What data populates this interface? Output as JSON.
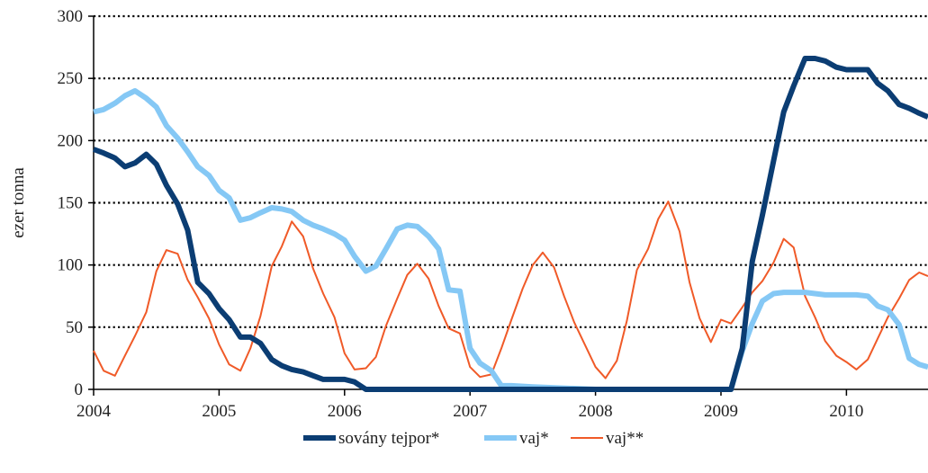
{
  "chart_data": {
    "type": "line",
    "title": "",
    "xlabel": "",
    "ylabel": "ezer tonna",
    "ylim": [
      0,
      300
    ],
    "xlim": [
      2004,
      2010.65
    ],
    "yticks": [
      0,
      50,
      100,
      150,
      200,
      250,
      300
    ],
    "xticks": [
      2004,
      2005,
      2006,
      2007,
      2008,
      2009,
      2010
    ],
    "grid": "horizontal-dotted",
    "legend_position": "bottom-center",
    "series": [
      {
        "name": "sovány tejpor*",
        "color": "#0b3d73",
        "width": "thick",
        "x": [
          2004.0,
          2004.08,
          2004.17,
          2004.25,
          2004.33,
          2004.42,
          2004.5,
          2004.58,
          2004.67,
          2004.75,
          2004.83,
          2004.92,
          2005.0,
          2005.08,
          2005.17,
          2005.25,
          2005.33,
          2005.42,
          2005.5,
          2005.58,
          2005.67,
          2005.75,
          2005.83,
          2005.92,
          2006.0,
          2006.08,
          2006.17,
          2006.25,
          2006.33,
          2006.5,
          2007.0,
          2007.5,
          2008.0,
          2008.5,
          2009.0,
          2009.08,
          2009.17,
          2009.25,
          2009.33,
          2009.42,
          2009.5,
          2009.58,
          2009.67,
          2009.75,
          2009.83,
          2009.92,
          2010.0,
          2010.08,
          2010.17,
          2010.25,
          2010.33,
          2010.42,
          2010.5,
          2010.58,
          2010.65
        ],
        "y": [
          193,
          190,
          186,
          179,
          182,
          189,
          181,
          164,
          149,
          128,
          86,
          77,
          65,
          56,
          42,
          42,
          37,
          24,
          19,
          16,
          14,
          11,
          8,
          8,
          8,
          6,
          0,
          0,
          0,
          0,
          0,
          0,
          0,
          0,
          0,
          0,
          33,
          103,
          140,
          184,
          223,
          244,
          266,
          266,
          264,
          259,
          257,
          257,
          257,
          246,
          240,
          229,
          226,
          222,
          219
        ]
      },
      {
        "name": "vaj*",
        "color": "#85c8f5",
        "width": "thick",
        "x": [
          2004.0,
          2004.08,
          2004.17,
          2004.25,
          2004.33,
          2004.42,
          2004.5,
          2004.58,
          2004.67,
          2004.75,
          2004.83,
          2004.92,
          2005.0,
          2005.08,
          2005.17,
          2005.25,
          2005.33,
          2005.42,
          2005.5,
          2005.58,
          2005.67,
          2005.75,
          2005.83,
          2005.92,
          2006.0,
          2006.08,
          2006.17,
          2006.25,
          2006.33,
          2006.42,
          2006.5,
          2006.58,
          2006.67,
          2006.75,
          2006.83,
          2006.92,
          2007.0,
          2007.08,
          2007.17,
          2007.25,
          2007.33,
          2007.5,
          2008.0,
          2008.5,
          2009.0,
          2009.08,
          2009.17,
          2009.25,
          2009.33,
          2009.42,
          2009.5,
          2009.58,
          2009.67,
          2009.75,
          2009.83,
          2009.92,
          2010.0,
          2010.08,
          2010.17,
          2010.25,
          2010.33,
          2010.42,
          2010.5,
          2010.58,
          2010.65
        ],
        "y": [
          223,
          225,
          230,
          236,
          240,
          234,
          227,
          212,
          202,
          191,
          179,
          172,
          160,
          154,
          136,
          138,
          142,
          146,
          145,
          143,
          136,
          132,
          129,
          125,
          120,
          107,
          95,
          99,
          113,
          129,
          132,
          131,
          123,
          113,
          80,
          79,
          33,
          21,
          15,
          3,
          3,
          2,
          0,
          0,
          0,
          0,
          31,
          53,
          71,
          77,
          78,
          78,
          78,
          77,
          76,
          76,
          76,
          76,
          75,
          67,
          64,
          52,
          25,
          20,
          18
        ]
      },
      {
        "name": "vaj**",
        "color": "#f05a28",
        "width": "thin",
        "x": [
          2004.0,
          2004.08,
          2004.17,
          2004.25,
          2004.33,
          2004.42,
          2004.5,
          2004.58,
          2004.67,
          2004.75,
          2004.83,
          2004.92,
          2005.0,
          2005.08,
          2005.17,
          2005.25,
          2005.33,
          2005.42,
          2005.5,
          2005.58,
          2005.67,
          2005.75,
          2005.83,
          2005.92,
          2006.0,
          2006.08,
          2006.17,
          2006.25,
          2006.33,
          2006.42,
          2006.5,
          2006.58,
          2006.67,
          2006.75,
          2006.83,
          2006.92,
          2007.0,
          2007.08,
          2007.17,
          2007.25,
          2007.33,
          2007.42,
          2007.5,
          2007.58,
          2007.67,
          2007.75,
          2007.83,
          2007.92,
          2008.0,
          2008.08,
          2008.17,
          2008.25,
          2008.33,
          2008.42,
          2008.5,
          2008.58,
          2008.67,
          2008.75,
          2008.83,
          2008.92,
          2009.0,
          2009.08,
          2009.17,
          2009.25,
          2009.33,
          2009.42,
          2009.5,
          2009.58,
          2009.67,
          2009.75,
          2009.83,
          2009.92,
          2010.0,
          2010.08,
          2010.17,
          2010.25,
          2010.33,
          2010.42,
          2010.5,
          2010.58,
          2010.65
        ],
        "y": [
          31,
          15,
          11,
          27,
          43,
          62,
          95,
          112,
          109,
          88,
          74,
          57,
          36,
          20,
          15,
          33,
          59,
          99,
          115,
          135,
          123,
          97,
          77,
          58,
          29,
          16,
          17,
          26,
          51,
          73,
          92,
          101,
          89,
          67,
          49,
          45,
          18,
          10,
          12,
          33,
          56,
          81,
          100,
          110,
          98,
          75,
          54,
          35,
          18,
          9,
          23,
          55,
          96,
          113,
          137,
          151,
          127,
          86,
          57,
          38,
          56,
          53,
          66,
          78,
          87,
          102,
          121,
          114,
          75,
          58,
          39,
          27,
          22,
          16,
          24,
          41,
          58,
          73,
          88,
          94,
          91
        ]
      }
    ]
  }
}
